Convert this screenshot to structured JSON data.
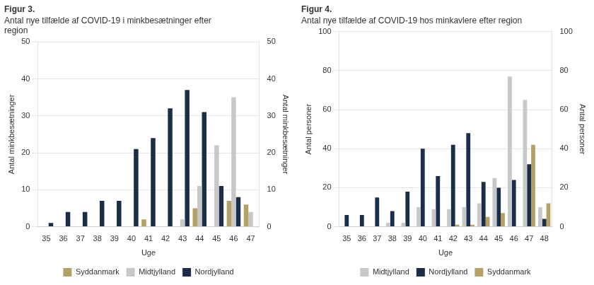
{
  "chart_data": [
    {
      "type": "bar",
      "title": "Figur 3.",
      "subtitle": "Antal nye tilfælde af COVID-19 i minkbesætninger efter\nregion",
      "xlabel": "Uge",
      "ylabel": "Antal minkbesætninger",
      "y2label": "Antal minkbesætninger",
      "categories": [
        35,
        36,
        37,
        38,
        39,
        40,
        41,
        42,
        43,
        44,
        45,
        46,
        47
      ],
      "series": [
        {
          "name": "Syddanmark",
          "color": "#b5a165",
          "values": [
            0,
            0,
            0,
            0,
            0,
            0,
            2,
            0,
            0,
            5,
            0,
            7,
            6
          ]
        },
        {
          "name": "Midtjylland",
          "color": "#c8c8c8",
          "values": [
            0,
            0,
            0,
            0,
            0,
            0,
            0,
            0,
            2,
            11,
            22,
            35,
            4
          ]
        },
        {
          "name": "Nordjylland",
          "color": "#1a2e4a",
          "values": [
            1,
            4,
            4,
            7,
            7,
            21,
            24,
            32,
            37,
            31,
            11,
            8,
            0
          ]
        }
      ],
      "ylim": [
        0,
        50
      ],
      "yticks": [
        0,
        10,
        20,
        30,
        40,
        50
      ],
      "y2lim": [
        0,
        50
      ],
      "y2ticks": [
        0,
        10,
        20,
        30,
        40,
        50
      ],
      "grid": true,
      "legend": "bottom"
    },
    {
      "type": "bar",
      "title": "Figur 4.",
      "subtitle": "Antal nye tilfælde af COVID-19 hos minkavlere efter region",
      "xlabel": "Uge",
      "ylabel": "Antal personer",
      "y2label": "Antal personer",
      "categories": [
        35,
        36,
        37,
        38,
        39,
        40,
        41,
        42,
        43,
        44,
        45,
        46,
        47,
        48
      ],
      "series": [
        {
          "name": "Midtjylland",
          "color": "#c8c8c8",
          "values": [
            0,
            0,
            0,
            2,
            2,
            10,
            9,
            9,
            10,
            12,
            25,
            77,
            65,
            10
          ]
        },
        {
          "name": "Nordjylland",
          "color": "#1a2e4a",
          "values": [
            6,
            6,
            15,
            8,
            18,
            40,
            26,
            42,
            48,
            23,
            20,
            24,
            32,
            4
          ]
        },
        {
          "name": "Syddanmark",
          "color": "#b5a165",
          "values": [
            0,
            0,
            0,
            0,
            0,
            0,
            0,
            1,
            1,
            5,
            7,
            0,
            42,
            12
          ]
        }
      ],
      "ylim": [
        0,
        100
      ],
      "yticks": [
        0,
        20,
        40,
        60,
        80,
        100
      ],
      "y2lim": [
        0,
        100
      ],
      "y2ticks": [
        0,
        20,
        40,
        60,
        80,
        100
      ],
      "grid": true,
      "legend": "bottom"
    }
  ]
}
